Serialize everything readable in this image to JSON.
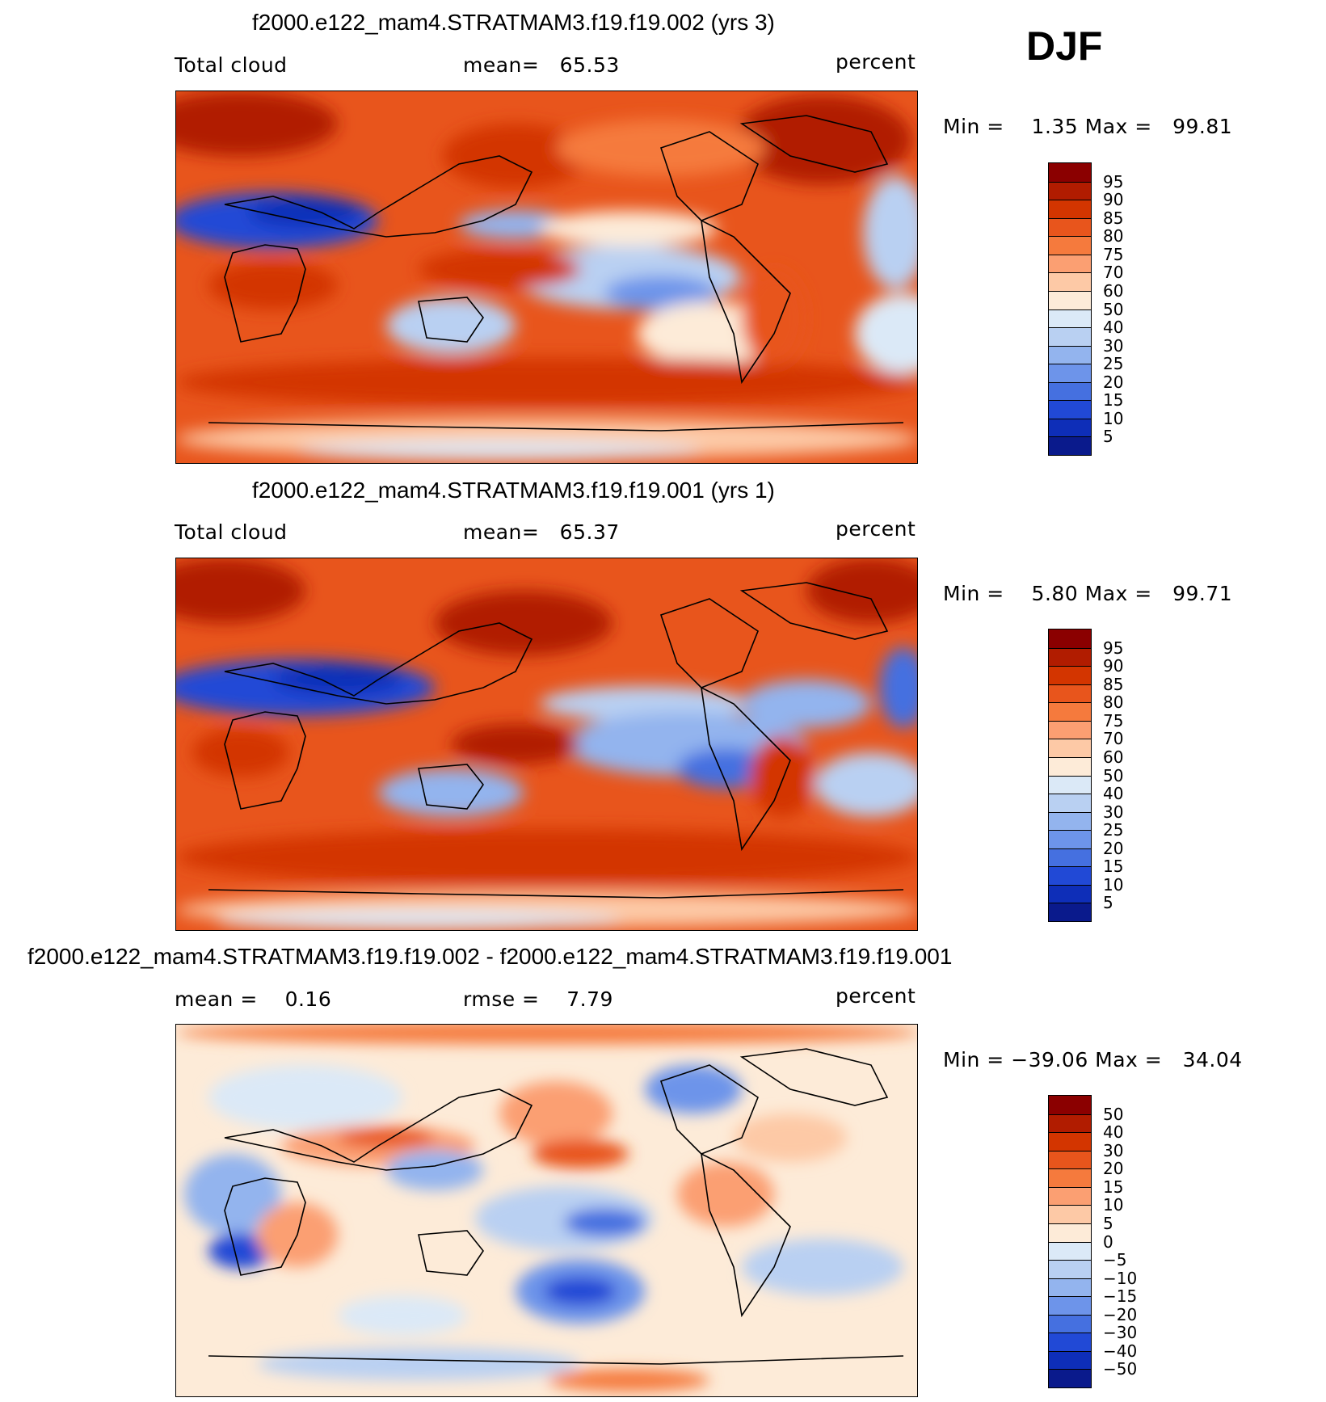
{
  "season": "DJF",
  "panels": [
    {
      "title": "f2000.e122_mam4.STRATMAM3.f19.f19.002 (yrs 3)",
      "left_text": "Total cloud",
      "center_text": "mean=   65.53",
      "right_text": "percent",
      "stats": "Min =    1.35 Max =   99.81",
      "colorbar": {
        "labels": [
          "95",
          "90",
          "85",
          "80",
          "75",
          "70",
          "60",
          "50",
          "40",
          "30",
          "25",
          "20",
          "15",
          "10",
          "5"
        ],
        "colors": [
          "#8b0000",
          "#b11c00",
          "#d33500",
          "#e8551c",
          "#f57a3d",
          "#fb9f72",
          "#fdc9a6",
          "#fdebd8",
          "#dbe9f7",
          "#b9d0f2",
          "#93b4ee",
          "#6d94ea",
          "#4570e0",
          "#2149d6",
          "#0e2eb8",
          "#0a1a8c"
        ]
      }
    },
    {
      "title": "f2000.e122_mam4.STRATMAM3.f19.f19.001 (yrs 1)",
      "left_text": "Total cloud",
      "center_text": "mean=   65.37",
      "right_text": "percent",
      "stats": "Min =    5.80 Max =   99.71",
      "colorbar": {
        "labels": [
          "95",
          "90",
          "85",
          "80",
          "75",
          "70",
          "60",
          "50",
          "40",
          "30",
          "25",
          "20",
          "15",
          "10",
          "5"
        ],
        "colors": [
          "#8b0000",
          "#b11c00",
          "#d33500",
          "#e8551c",
          "#f57a3d",
          "#fb9f72",
          "#fdc9a6",
          "#fdebd8",
          "#dbe9f7",
          "#b9d0f2",
          "#93b4ee",
          "#6d94ea",
          "#4570e0",
          "#2149d6",
          "#0e2eb8",
          "#0a1a8c"
        ]
      }
    },
    {
      "title": "f2000.e122_mam4.STRATMAM3.f19.f19.002 - f2000.e122_mam4.STRATMAM3.f19.f19.001",
      "left_text": "mean =    0.16",
      "center_text": "rmse =    7.79",
      "right_text": "percent",
      "stats": "Min = −39.06 Max =   34.04",
      "colorbar": {
        "labels": [
          "50",
          "40",
          "30",
          "20",
          "15",
          "10",
          "5",
          "0",
          "−5",
          "−10",
          "−15",
          "−20",
          "−30",
          "−40",
          "−50"
        ],
        "colors": [
          "#8b0000",
          "#b11c00",
          "#d33500",
          "#e8551c",
          "#f57a3d",
          "#fb9f72",
          "#fdc9a6",
          "#fdebd8",
          "#dbe9f7",
          "#b9d0f2",
          "#93b4ee",
          "#6d94ea",
          "#4570e0",
          "#2149d6",
          "#0e2eb8",
          "#0a1a8c"
        ]
      }
    }
  ]
}
